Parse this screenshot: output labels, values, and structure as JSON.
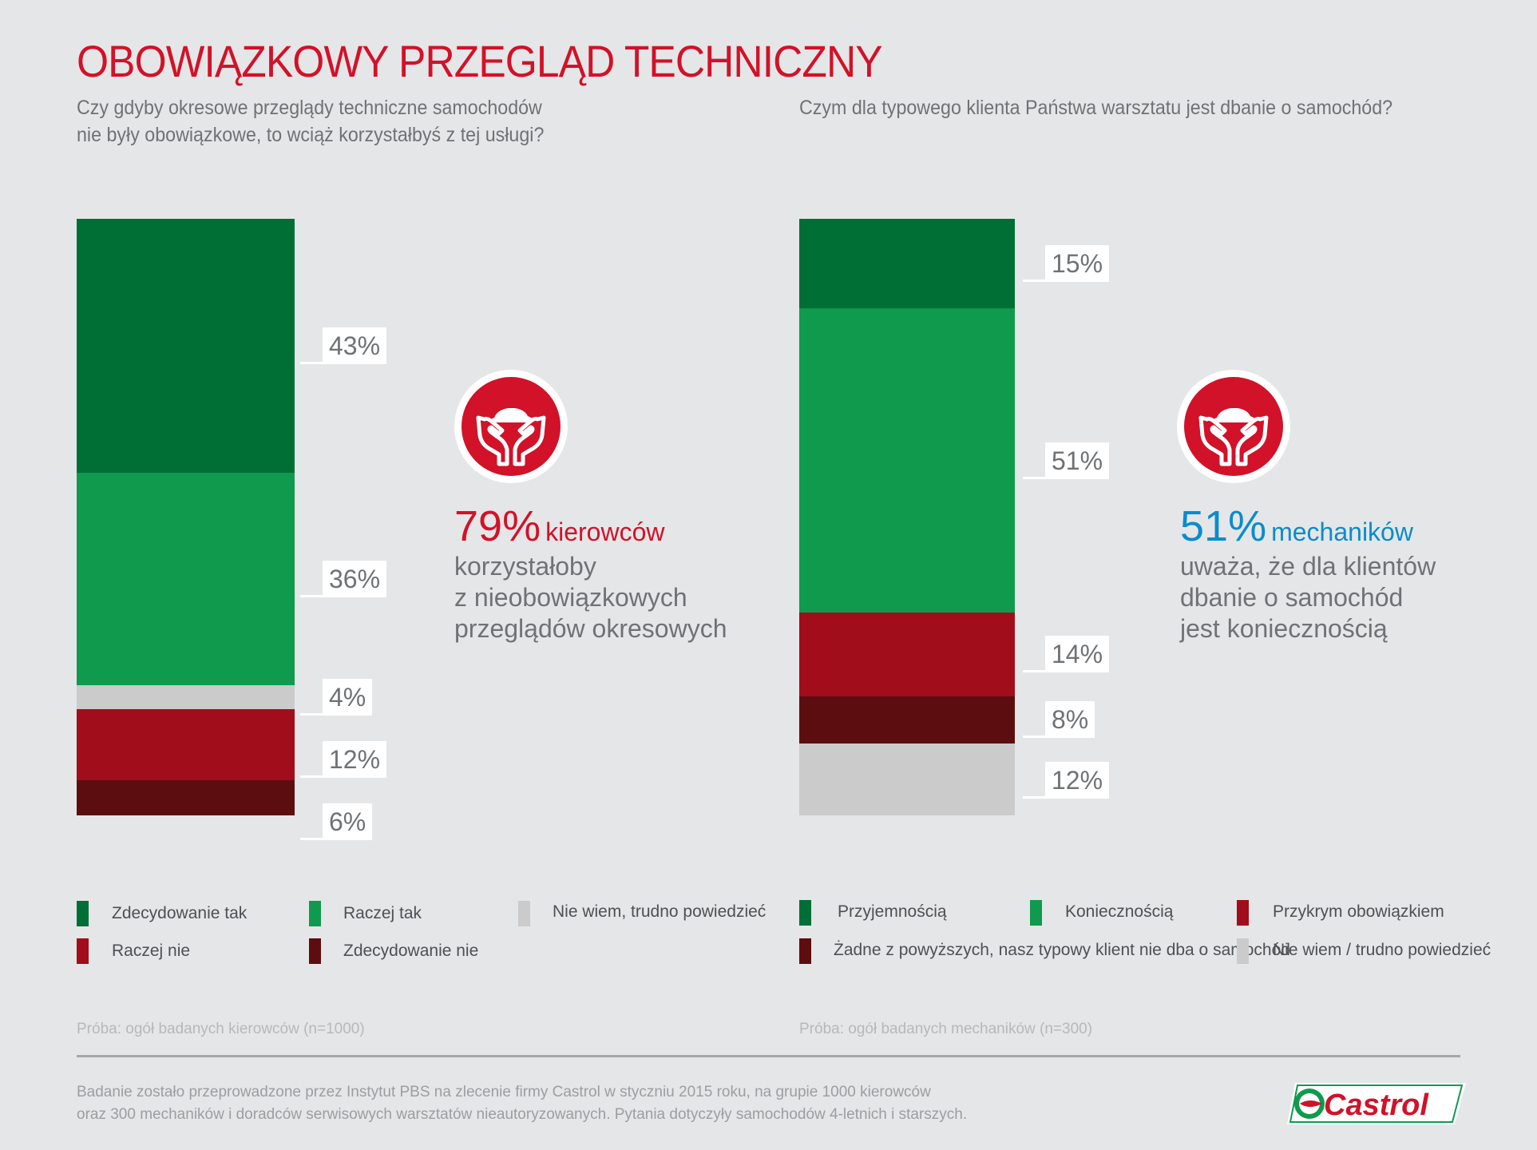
{
  "title": "OBOWIĄZKOWY PRZEGLĄD TECHNICZNY",
  "left": {
    "question_line1": "Czy gdyby okresowe przeglądy techniczne samochodów",
    "question_line2": "nie były obowiązkowe, to wciąż korzystałbyś z tej usługi?",
    "stat_number": "79%",
    "stat_word": "kierowców",
    "stat_text": [
      "korzystałoby",
      "z nieobowiązkowych",
      "przeglądów okresowych"
    ],
    "stat_color": "#d11229",
    "sample": "Próba: ogół badanych kierowców (n=1000)",
    "legend": [
      {
        "label": "Zdecydowanie tak",
        "color": "#006f35"
      },
      {
        "label": "Raczej tak",
        "color": "#0f9a4e"
      },
      {
        "label": "Nie wiem, trudno powiedzieć",
        "color": "#cbcbcb"
      },
      {
        "label": "Raczej nie",
        "color": "#a10d1b"
      },
      {
        "label": "Zdecydowanie nie",
        "color": "#5c0d10"
      }
    ]
  },
  "right": {
    "question_line1": "Czym dla typowego klienta Państwa warsztatu jest dbanie o samochód?",
    "stat_number": "51%",
    "stat_word": "mechaników",
    "stat_text": [
      "uważa, że dla klientów",
      "dbanie o samochód",
      "jest koniecznością"
    ],
    "stat_color": "#0a8ccd",
    "sample": "Próba: ogół badanych mechaników (n=300)",
    "legend": [
      {
        "label": "Przyjemnością",
        "color": "#006f35"
      },
      {
        "label": "Koniecznością",
        "color": "#0f9a4e"
      },
      {
        "label": "Przykrym obowiązkiem",
        "color": "#a10d1b"
      },
      {
        "label": "Żadne z powyższych, nasz typowy klient nie dba o samochód",
        "color": "#5c0d10"
      },
      {
        "label": "Nie wiem / trudno powiedzieć",
        "color": "#cbcbcb"
      }
    ]
  },
  "chart_data": [
    {
      "type": "bar",
      "stacked": true,
      "title": "Czy gdyby okresowe przeglądy techniczne samochodów nie były obowiązkowe, to wciąż korzystałbyś z tej usługi?",
      "categories": [
        "Zdecydowanie tak",
        "Raczej tak",
        "Nie wiem, trudno powiedzieć",
        "Raczej nie",
        "Zdecydowanie nie"
      ],
      "values": [
        43,
        36,
        4,
        12,
        6
      ],
      "labels": [
        "43%",
        "36%",
        "4%",
        "12%",
        "6%"
      ],
      "colors": [
        "#006f35",
        "#0f9a4e",
        "#cbcbcb",
        "#a10d1b",
        "#5c0d10"
      ],
      "legend": "bottom"
    },
    {
      "type": "bar",
      "stacked": true,
      "title": "Czym dla typowego klienta Państwa warsztatu jest dbanie o samochód?",
      "categories": [
        "Przyjemnością",
        "Koniecznością",
        "Przykrym obowiązkiem",
        "Żadne z powyższych, nasz typowy klient nie dba o samochód",
        "Nie wiem / trudno powiedzieć"
      ],
      "values": [
        15,
        51,
        14,
        8,
        12
      ],
      "labels": [
        "15%",
        "51%",
        "14%",
        "8%",
        "12%"
      ],
      "colors": [
        "#006f35",
        "#0f9a4e",
        "#a10d1b",
        "#5c0d10",
        "#cbcbcb"
      ],
      "legend": "bottom"
    }
  ],
  "footer_line1": "Badanie zostało przeprowadzone przez Instytut PBS na zlecenie firmy Castrol w styczniu 2015 roku, na grupie 1000 kierowców",
  "footer_line2": "oraz 300 mechaników i doradców serwisowych warsztatów nieautoryzowanych. Pytania dotyczyły samochodów 4-letnich i starszych.",
  "logo_text": "Castrol",
  "icons": {
    "badge": "hands-holding-car-icon",
    "logo": "castrol-logo"
  }
}
